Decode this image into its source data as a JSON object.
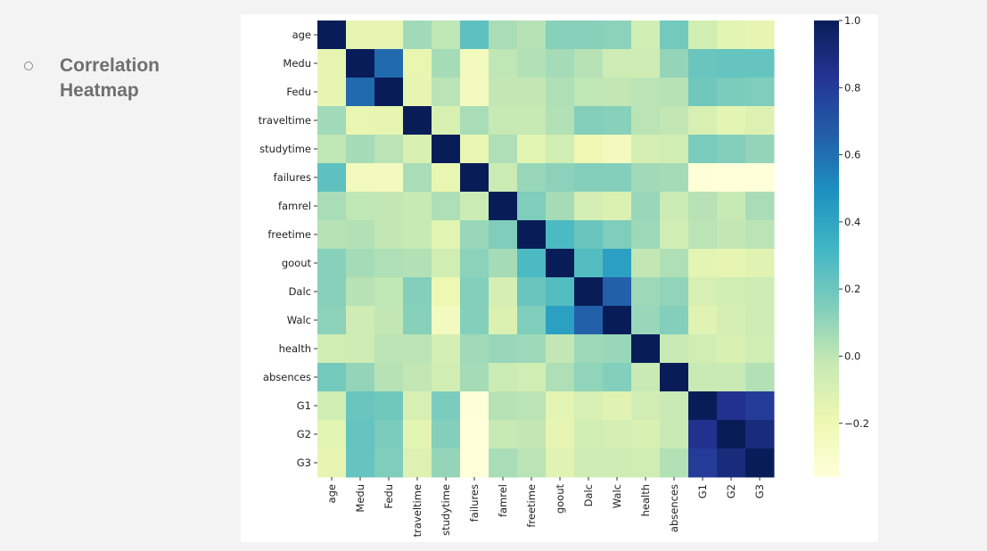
{
  "bullet": {
    "line1": "Correlation",
    "line2": "Heatmap"
  },
  "chart_data": {
    "type": "heatmap",
    "title": "",
    "xlabel": "",
    "ylabel": "",
    "labels": [
      "age",
      "Medu",
      "Fedu",
      "traveltime",
      "studytime",
      "failures",
      "famrel",
      "freetime",
      "goout",
      "Dalc",
      "Walc",
      "health",
      "absences",
      "G1",
      "G2",
      "G3"
    ],
    "matrix": [
      [
        1.0,
        -0.16,
        -0.16,
        0.07,
        -0.0,
        0.24,
        0.05,
        0.02,
        0.13,
        0.13,
        0.12,
        -0.06,
        0.18,
        -0.06,
        -0.14,
        -0.16
      ],
      [
        -0.16,
        1.0,
        0.62,
        -0.17,
        0.06,
        -0.24,
        -0.0,
        0.03,
        0.06,
        0.02,
        -0.05,
        -0.05,
        0.1,
        0.21,
        0.22,
        0.22
      ],
      [
        -0.16,
        0.62,
        1.0,
        -0.16,
        0.01,
        -0.25,
        -0.01,
        -0.01,
        0.04,
        0.0,
        -0.01,
        0.01,
        0.02,
        0.19,
        0.16,
        0.15
      ],
      [
        0.07,
        -0.17,
        -0.16,
        1.0,
        -0.1,
        0.05,
        -0.02,
        -0.02,
        0.03,
        0.14,
        0.13,
        0.01,
        -0.01,
        -0.09,
        -0.15,
        -0.12
      ],
      [
        -0.0,
        0.06,
        0.01,
        -0.1,
        1.0,
        -0.17,
        0.04,
        -0.14,
        -0.06,
        -0.2,
        -0.25,
        -0.08,
        -0.06,
        0.16,
        0.14,
        0.1
      ],
      [
        0.24,
        -0.24,
        -0.25,
        0.05,
        -0.17,
        1.0,
        -0.04,
        0.09,
        0.12,
        0.14,
        0.14,
        0.07,
        0.06,
        -0.35,
        -0.36,
        -0.36
      ],
      [
        0.05,
        -0.0,
        -0.01,
        -0.02,
        0.04,
        -0.04,
        1.0,
        0.15,
        0.06,
        -0.08,
        -0.11,
        0.09,
        -0.04,
        0.02,
        -0.02,
        0.05
      ],
      [
        0.02,
        0.03,
        -0.01,
        -0.02,
        -0.14,
        0.09,
        0.15,
        1.0,
        0.29,
        0.21,
        0.15,
        0.08,
        -0.06,
        0.01,
        -0.01,
        0.01
      ],
      [
        0.13,
        0.06,
        0.04,
        0.03,
        -0.06,
        0.12,
        0.06,
        0.29,
        1.0,
        0.27,
        0.42,
        -0.01,
        0.04,
        -0.15,
        -0.16,
        -0.13
      ],
      [
        0.13,
        0.02,
        0.0,
        0.14,
        -0.2,
        0.14,
        -0.08,
        0.21,
        0.27,
        1.0,
        0.65,
        0.08,
        0.11,
        -0.09,
        -0.06,
        -0.05
      ],
      [
        0.12,
        -0.05,
        -0.01,
        0.13,
        -0.25,
        0.14,
        -0.11,
        0.15,
        0.42,
        0.65,
        1.0,
        0.09,
        0.14,
        -0.13,
        -0.08,
        -0.05
      ],
      [
        -0.06,
        -0.05,
        0.01,
        0.01,
        -0.08,
        0.07,
        0.09,
        0.08,
        -0.01,
        0.08,
        0.09,
        1.0,
        -0.03,
        -0.07,
        -0.1,
        -0.06
      ],
      [
        0.18,
        0.1,
        0.02,
        -0.01,
        -0.06,
        0.06,
        -0.04,
        -0.06,
        0.04,
        0.11,
        0.14,
        -0.03,
        1.0,
        -0.03,
        -0.03,
        0.03
      ],
      [
        -0.06,
        0.21,
        0.19,
        -0.09,
        0.16,
        -0.35,
        0.02,
        0.01,
        -0.15,
        -0.09,
        -0.13,
        -0.07,
        -0.03,
        1.0,
        0.85,
        0.8
      ],
      [
        -0.14,
        0.22,
        0.16,
        -0.15,
        0.14,
        -0.36,
        -0.02,
        -0.01,
        -0.16,
        -0.06,
        -0.08,
        -0.1,
        -0.03,
        0.85,
        1.0,
        0.9
      ],
      [
        -0.16,
        0.22,
        0.15,
        -0.12,
        0.1,
        -0.36,
        0.05,
        0.01,
        -0.13,
        -0.05,
        -0.05,
        -0.06,
        0.03,
        0.8,
        0.9,
        1.0
      ]
    ],
    "color_scale": {
      "name": "YlGnBu",
      "min": -0.36,
      "max": 1.0,
      "ticks": [
        1.0,
        0.8,
        0.6,
        0.4,
        0.2,
        0.0,
        -0.2
      ],
      "tick_labels": [
        "1.0",
        "0.8",
        "0.6",
        "0.4",
        "0.2",
        "0.0",
        "−0.2"
      ],
      "colors": [
        "#ffffd9",
        "#edf8b1",
        "#c7e9b4",
        "#7fcdbb",
        "#41b6c4",
        "#1d91c0",
        "#225ea8",
        "#253494",
        "#081d58"
      ]
    },
    "grid": false,
    "legend": "right"
  }
}
